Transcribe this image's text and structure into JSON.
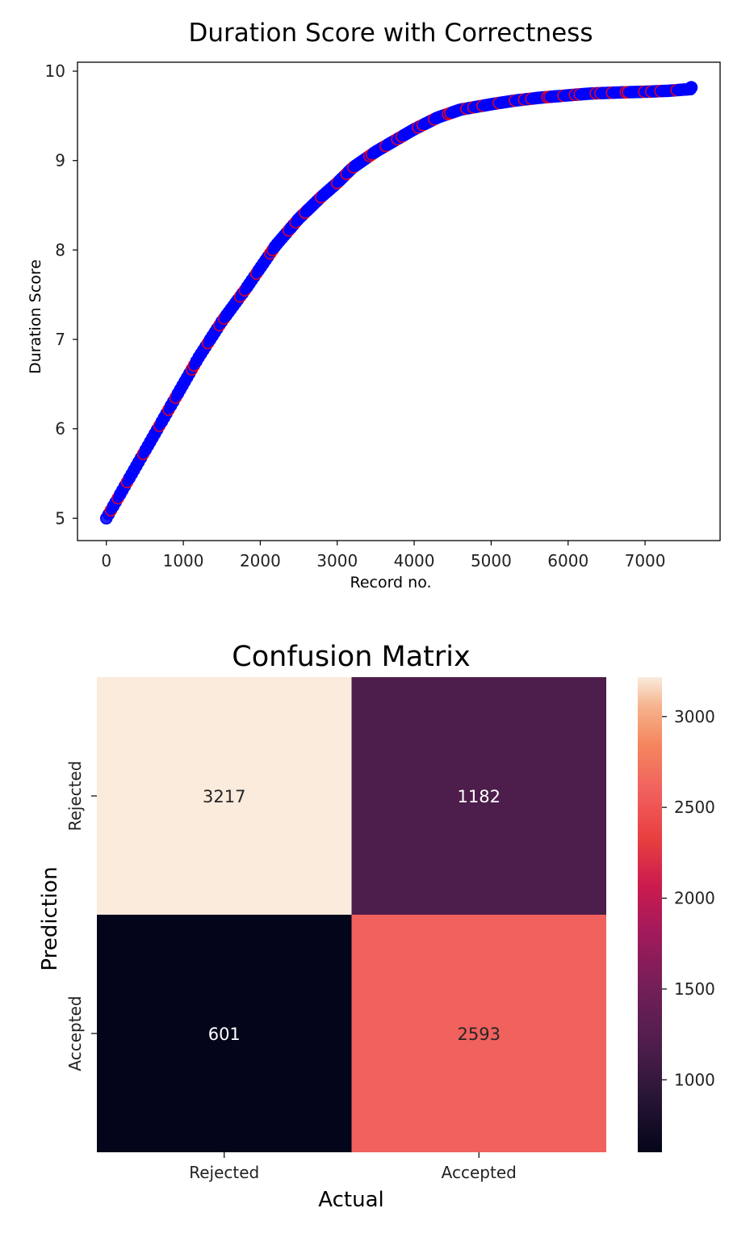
{
  "chart_data": [
    {
      "type": "scatter",
      "title": "Duration Score with Correctness",
      "xlabel": "Record no.",
      "ylabel": "Duration Score",
      "xlim": [
        -375,
        7975
      ],
      "ylim": [
        4.75,
        10.1
      ],
      "x_ticks": [
        0,
        1000,
        2000,
        3000,
        4000,
        5000,
        6000,
        7000
      ],
      "y_ticks": [
        5,
        6,
        7,
        8,
        9,
        10
      ],
      "grid": false,
      "legend": "none",
      "marker_edge_colors": [
        "#0000ff",
        "#e8001c"
      ],
      "marker_face_color": "#0000ff",
      "x": [
        0,
        100,
        200,
        400,
        600,
        800,
        1000,
        1200,
        1500,
        1800,
        2000,
        2200,
        2500,
        2800,
        3000,
        3200,
        3500,
        3800,
        4000,
        4300,
        4600,
        5000,
        5300,
        5600,
        6000,
        6300,
        6600,
        7000,
        7300,
        7600
      ],
      "y": [
        5.0,
        5.15,
        5.3,
        5.6,
        5.9,
        6.2,
        6.5,
        6.8,
        7.2,
        7.55,
        7.8,
        8.05,
        8.35,
        8.6,
        8.75,
        8.92,
        9.1,
        9.25,
        9.35,
        9.48,
        9.57,
        9.63,
        9.67,
        9.7,
        9.73,
        9.75,
        9.76,
        9.77,
        9.78,
        9.8
      ],
      "series_count": 7600
    },
    {
      "type": "heatmap",
      "title": "Confusion Matrix",
      "xlabel": "Actual",
      "ylabel": "Prediction",
      "x_categories": [
        "Rejected",
        "Accepted"
      ],
      "y_categories": [
        "Rejected",
        "Accepted"
      ],
      "values": [
        [
          3217,
          1182
        ],
        [
          601,
          2593
        ]
      ],
      "colormap": "rocket",
      "colorbar_ticks": [
        1000,
        1500,
        2000,
        2500,
        3000
      ],
      "colorbar_range": [
        601,
        3217
      ]
    }
  ]
}
